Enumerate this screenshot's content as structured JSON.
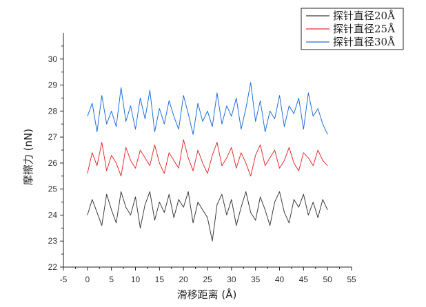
{
  "chart_data": {
    "type": "line",
    "title": "",
    "xlabel": "滑移距离 (Å)",
    "ylabel": "摩擦力 (nN)",
    "xlim": [
      -5,
      55
    ],
    "ylim": [
      22,
      31
    ],
    "x_ticks": [
      "-5",
      "0",
      "5",
      "10",
      "15",
      "20",
      "25",
      "30",
      "35",
      "40",
      "45",
      "50",
      "55"
    ],
    "y_ticks": [
      "22",
      "23",
      "24",
      "25",
      "26",
      "27",
      "28",
      "29",
      "30"
    ],
    "legend_position": "top-right",
    "x": [
      0,
      1,
      2,
      3,
      4,
      5,
      6,
      7,
      8,
      9,
      10,
      11,
      12,
      13,
      14,
      15,
      16,
      17,
      18,
      19,
      20,
      21,
      22,
      23,
      24,
      25,
      26,
      27,
      28,
      29,
      30,
      31,
      32,
      33,
      34,
      35,
      36,
      37,
      38,
      39,
      40,
      41,
      42,
      43,
      44,
      45,
      46,
      47,
      48,
      49,
      50
    ],
    "series": [
      {
        "name": "探针直径20Å",
        "color": "#3a3a3a",
        "values": [
          24.0,
          24.6,
          24.1,
          23.6,
          24.8,
          24.2,
          23.7,
          24.9,
          24.3,
          24.0,
          24.7,
          23.5,
          24.4,
          24.9,
          23.8,
          24.5,
          24.1,
          24.8,
          23.9,
          24.6,
          24.3,
          24.9,
          23.7,
          24.5,
          24.2,
          23.9,
          23.0,
          24.4,
          24.8,
          24.0,
          24.6,
          23.6,
          24.3,
          24.9,
          24.1,
          23.8,
          24.7,
          24.2,
          23.6,
          24.5,
          24.9,
          24.1,
          23.7,
          24.6,
          24.3,
          24.8,
          24.0,
          24.5,
          23.9,
          24.6,
          24.2
        ]
      },
      {
        "name": "探针直径25Å",
        "color": "#e03030",
        "values": [
          25.6,
          26.4,
          25.9,
          26.8,
          25.7,
          26.3,
          26.0,
          25.5,
          26.6,
          26.1,
          25.8,
          26.5,
          26.2,
          25.9,
          26.7,
          26.0,
          25.6,
          26.4,
          26.1,
          25.8,
          26.9,
          26.2,
          25.7,
          26.5,
          26.0,
          25.6,
          26.3,
          26.8,
          25.9,
          26.2,
          26.6,
          25.8,
          26.4,
          26.0,
          25.5,
          26.3,
          26.7,
          25.9,
          26.2,
          26.5,
          25.8,
          26.1,
          26.6,
          26.0,
          25.7,
          26.4,
          26.2,
          25.9,
          26.5,
          26.1,
          25.9
        ]
      },
      {
        "name": "探针直径30Å",
        "color": "#1f6fd6",
        "values": [
          27.8,
          28.3,
          27.2,
          28.6,
          27.5,
          28.0,
          27.4,
          28.9,
          27.6,
          28.2,
          27.3,
          28.5,
          27.7,
          28.8,
          27.2,
          28.1,
          27.5,
          28.4,
          27.8,
          27.3,
          28.6,
          27.9,
          27.1,
          28.3,
          27.6,
          28.0,
          27.4,
          28.7,
          27.5,
          28.2,
          27.8,
          28.5,
          27.3,
          28.1,
          29.1,
          27.6,
          28.4,
          27.2,
          28.0,
          27.7,
          28.6,
          27.4,
          28.2,
          27.9,
          28.5,
          27.3,
          28.7,
          27.8,
          28.1,
          27.5,
          27.1
        ]
      }
    ]
  }
}
